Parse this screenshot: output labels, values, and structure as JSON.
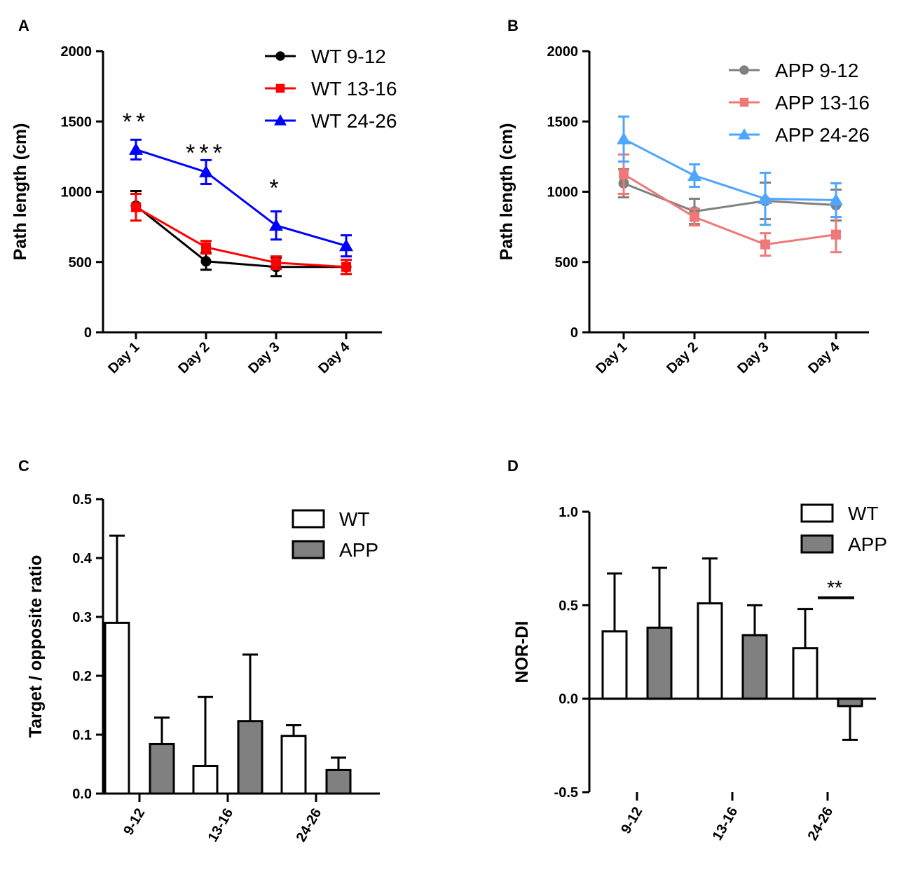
{
  "chart_data": [
    {
      "panel": "A",
      "type": "line",
      "ylabel": "Path length (cm)",
      "xlabel": "",
      "categories": [
        "Day 1",
        "Day 2",
        "Day 3",
        "Day 4"
      ],
      "ylim": [
        0,
        2000
      ],
      "yticks": [
        0,
        500,
        1000,
        1500,
        2000
      ],
      "legend_position": "top-right",
      "series": [
        {
          "name": "WT 9-12",
          "color": "#000000",
          "marker": "circle",
          "values": [
            900,
            505,
            465,
            465
          ],
          "errors": [
            105,
            60,
            65,
            50
          ]
        },
        {
          "name": "WT 13-16",
          "color": "#ff0000",
          "marker": "square",
          "values": [
            890,
            605,
            495,
            465
          ],
          "errors": [
            95,
            45,
            45,
            50
          ]
        },
        {
          "name": "WT 24-26",
          "color": "#0000ff",
          "marker": "triangle",
          "values": [
            1300,
            1140,
            760,
            615
          ],
          "errors": [
            70,
            85,
            100,
            75
          ]
        }
      ],
      "annotations": [
        {
          "text": "**",
          "category": "Day 1",
          "y": 1530
        },
        {
          "text": "***",
          "category": "Day 2",
          "y": 1310
        },
        {
          "text": "*",
          "category": "Day 3",
          "y": 1060
        }
      ]
    },
    {
      "panel": "B",
      "type": "line",
      "ylabel": "Path length (cm)",
      "xlabel": "",
      "categories": [
        "Day 1",
        "Day 2",
        "Day 3",
        "Day 4"
      ],
      "ylim": [
        0,
        2000
      ],
      "yticks": [
        0,
        500,
        1000,
        1500,
        2000
      ],
      "legend_position": "top-right",
      "series": [
        {
          "name": "APP 9-12",
          "color": "#808080",
          "marker": "circle",
          "values": [
            1060,
            860,
            935,
            905
          ],
          "errors": [
            100,
            90,
            130,
            110
          ]
        },
        {
          "name": "APP 13-16",
          "color": "#f07878",
          "marker": "square",
          "values": [
            1125,
            820,
            625,
            695
          ],
          "errors": [
            140,
            60,
            80,
            125
          ]
        },
        {
          "name": "APP 24-26",
          "color": "#4da6ff",
          "marker": "triangle",
          "values": [
            1375,
            1115,
            950,
            940
          ],
          "errors": [
            160,
            80,
            185,
            120
          ]
        }
      ],
      "annotations": []
    },
    {
      "panel": "C",
      "type": "bar",
      "ylabel": "Target  / opposite ratio",
      "xlabel": "",
      "categories": [
        "9-12",
        "13-16",
        "24-26"
      ],
      "ylim": [
        0,
        0.5
      ],
      "yticks": [
        "0.0",
        "0.1",
        "0.2",
        "0.3",
        "0.4",
        "0.5"
      ],
      "legend_position": "top-right",
      "series": [
        {
          "name": "WT",
          "fill": "#ffffff",
          "values": [
            0.29,
            0.047,
            0.098
          ],
          "errors": [
            0.148,
            0.117,
            0.018
          ]
        },
        {
          "name": "APP",
          "fill": "#808080",
          "values": [
            0.084,
            0.123,
            0.04
          ],
          "errors": [
            0.045,
            0.113,
            0.021
          ]
        }
      ],
      "annotations": []
    },
    {
      "panel": "D",
      "type": "bar",
      "ylabel": "NOR-DI",
      "xlabel": "",
      "categories": [
        "9-12",
        "13-16",
        "24-26"
      ],
      "ylim": [
        -0.5,
        1.0
      ],
      "yticks": [
        "-0.5",
        "0.0",
        "0.5",
        "1.0"
      ],
      "legend_position": "top-right",
      "series": [
        {
          "name": "WT",
          "fill": "#ffffff",
          "values": [
            0.36,
            0.51,
            0.27
          ],
          "errors": [
            0.31,
            0.24,
            0.21
          ]
        },
        {
          "name": "APP",
          "fill": "#808080",
          "values": [
            0.38,
            0.34,
            -0.04
          ],
          "errors": [
            0.32,
            0.16,
            0.18
          ]
        }
      ],
      "annotations": [
        {
          "text": "**",
          "category": "24-26",
          "y": 0.62,
          "bracket_y": 0.54
        }
      ]
    }
  ]
}
